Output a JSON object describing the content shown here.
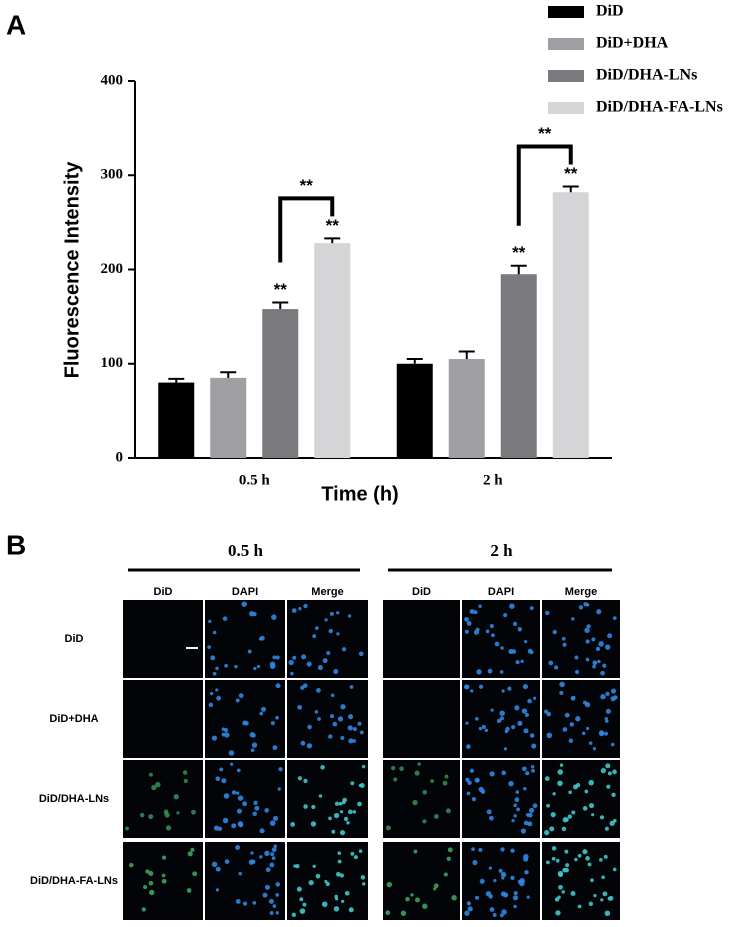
{
  "panel_labels": [
    "A",
    "B"
  ],
  "chart_data": {
    "type": "bar",
    "ylabel": "Fluorescence Intensity",
    "xlabel": "Time (h)",
    "categories": [
      "0.5 h",
      "2 h"
    ],
    "series": [
      {
        "name": "DiD",
        "color": "#000000",
        "values": [
          80,
          100
        ],
        "errors": [
          4,
          5
        ]
      },
      {
        "name": "DiD+DHA",
        "color": "#9f9ea3",
        "values": [
          85,
          105
        ],
        "errors": [
          6,
          8
        ]
      },
      {
        "name": "DiD/DHA-LNs",
        "color": "#7a797e",
        "values": [
          158,
          195
        ],
        "errors": [
          7,
          9
        ],
        "significance": [
          "**",
          "**"
        ]
      },
      {
        "name": "DiD/DHA-FA-LNs",
        "color": "#d5d5d7",
        "values": [
          228,
          282
        ],
        "errors": [
          5,
          6
        ],
        "significance": [
          "**",
          "**"
        ]
      }
    ],
    "bracket_labels": [
      "**",
      "**"
    ],
    "ylim": [
      0,
      400
    ],
    "yticks": [
      0,
      100,
      200,
      300,
      400
    ],
    "legend": "top right"
  },
  "panel_b": {
    "time_labels": [
      "0.5 h",
      "2 h"
    ],
    "columns": [
      "DiD",
      "DAPI",
      "Merge"
    ],
    "rows": [
      "DiD",
      "DiD+DHA",
      "DiD/DHA-LNs",
      "DiD/DHA-FA-LNs"
    ]
  }
}
